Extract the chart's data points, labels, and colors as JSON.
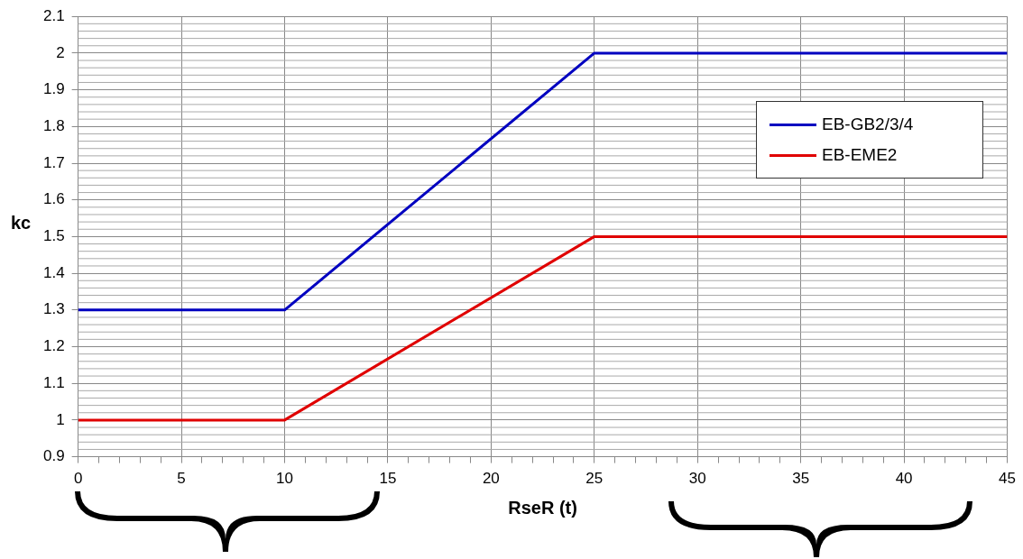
{
  "chart_data": {
    "type": "line",
    "xlabel": "RseR (t)",
    "ylabel": "kc",
    "x": [
      0,
      10,
      25,
      45
    ],
    "series": [
      {
        "name": "EB-GB2/3/4",
        "color": "#0000c0",
        "values": [
          1.3,
          1.3,
          2,
          2
        ]
      },
      {
        "name": "EB-EME2",
        "color": "#e00000",
        "values": [
          1,
          1,
          1.5,
          1.5
        ]
      }
    ],
    "xlim": [
      0,
      45
    ],
    "xticks": [
      0,
      {
        "value": 1,
        "label": null
      },
      {
        "value": 2,
        "label": null
      },
      {
        "value": 3,
        "label": null
      },
      {
        "value": 4,
        "label": null
      },
      5,
      {
        "value": 6,
        "label": null
      },
      {
        "value": 7,
        "label": null
      },
      {
        "value": 8,
        "label": null
      },
      {
        "value": 9,
        "label": null
      },
      10,
      {
        "value": 11,
        "label": null
      },
      {
        "value": 12,
        "label": null
      },
      {
        "value": 13,
        "label": null
      },
      {
        "value": 14,
        "label": null
      },
      15,
      {
        "value": 16,
        "label": null
      },
      {
        "value": 17,
        "label": null
      },
      {
        "value": 18,
        "label": null
      },
      {
        "value": 19,
        "label": null
      },
      20,
      {
        "value": 21,
        "label": null
      },
      {
        "value": 22,
        "label": null
      },
      {
        "value": 23,
        "label": null
      },
      {
        "value": 24,
        "label": null
      },
      25,
      {
        "value": 26,
        "label": null
      },
      {
        "value": 27,
        "label": null
      },
      {
        "value": 28,
        "label": null
      },
      {
        "value": 29,
        "label": null
      },
      30,
      {
        "value": 31,
        "label": null
      },
      {
        "value": 32,
        "label": null
      },
      {
        "value": 33,
        "label": null
      },
      {
        "value": 34,
        "label": null
      },
      35,
      {
        "value": 36,
        "label": null
      },
      {
        "value": 37,
        "label": null
      },
      {
        "value": 38,
        "label": null
      },
      {
        "value": 39,
        "label": null
      },
      40,
      {
        "value": 41,
        "label": null
      },
      {
        "value": 42,
        "label": null
      },
      {
        "value": 43,
        "label": null
      },
      {
        "value": 44,
        "label": null
      },
      45
    ],
    "ylim": [
      0.9,
      2.1
    ],
    "yticks": [
      0.9,
      1,
      1.1,
      1.2,
      1.3,
      1.4,
      1.5,
      1.6,
      1.7,
      1.8,
      1.9,
      2,
      2.1
    ],
    "grid": true,
    "legend": "top right",
    "marker": "none",
    "line_style": "solid"
  }
}
